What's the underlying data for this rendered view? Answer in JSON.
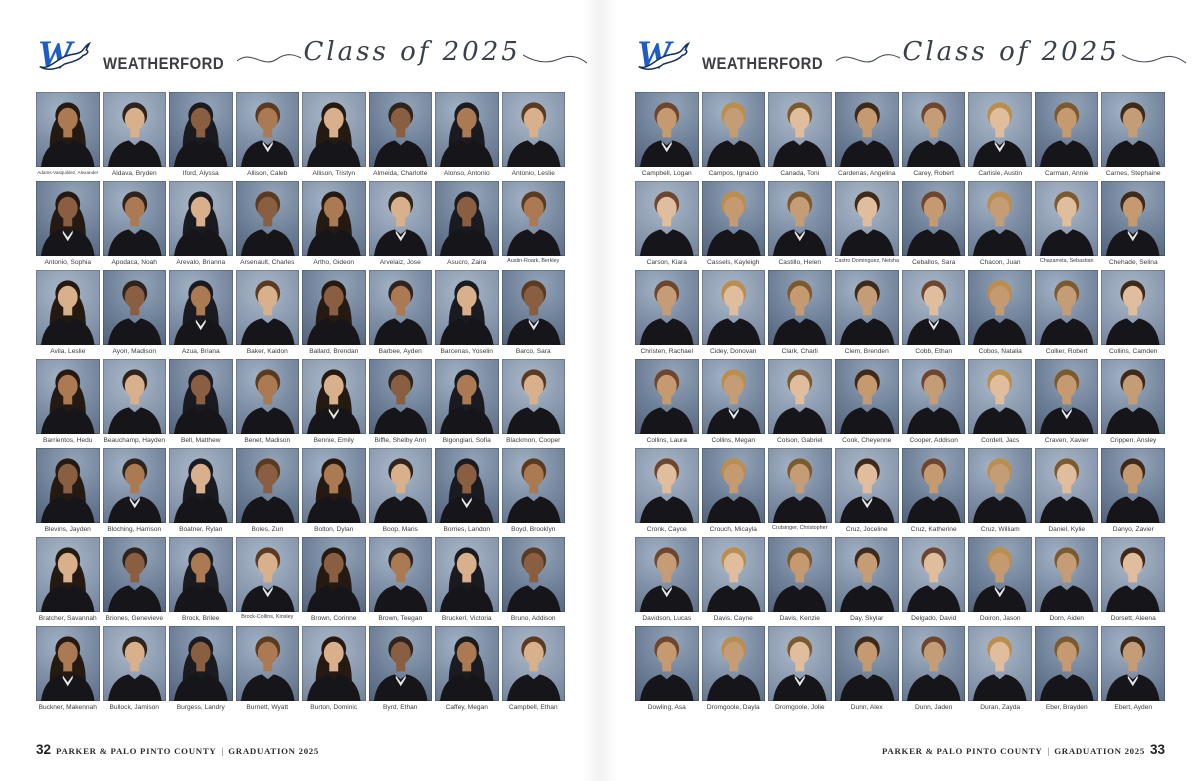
{
  "header": {
    "school_name": "WEATHERFORD",
    "class_title": "Class of 2025",
    "logo_icon": "weatherford-w-kangaroo-logo"
  },
  "colors": {
    "logo_blue": "#1d5ec6",
    "logo_navy_outline": "#16325c",
    "portrait_background_blue": "#7b8ca3"
  },
  "footer": {
    "left_page_number": "32",
    "right_page_number": "33",
    "publication": "PARKER & PALO PINTO COUNTY",
    "separator": "|",
    "section": "GRADUATION 2025"
  },
  "pages": [
    {
      "side": "left",
      "page_number": "32",
      "students": [
        "Adams-Vasquildez, Alexander",
        "Aldava, Bryden",
        "Iford, Alyssa",
        "Allison, Caleb",
        "Allison, Tristyn",
        "Almeida, Charlotte",
        "Alonso, Antonio",
        "Antonio, Leslie",
        "Antonio, Sophia",
        "Apodaca, Noah",
        "Arevalo, Brianna",
        "Arsenault, Charles",
        "Artho, Gideon",
        "Arvelaiz, Jose",
        "Asucro, Zaira",
        "Austin-Roark, Berkley",
        "Avila, Leslie",
        "Ayon, Madison",
        "Azua, Briana",
        "Baker, Kaidon",
        "Ballard, Brendan",
        "Barbee, Ayden",
        "Barcenas, Yoselin",
        "Barco, Sara",
        "Barrientos, Hedu",
        "Beauchamp, Hayden",
        "Bell, Matthew",
        "Benet, Madison",
        "Bennie, Emily",
        "Biffle, Shelby Ann",
        "Bigongiari, Sofia",
        "Blackmon, Cooper",
        "Blevins, Jayden",
        "Bloching, Harrison",
        "Boatner, Rylan",
        "Boles, Zuri",
        "Bolton, Dylan",
        "Boop, Maris",
        "Borries, Landon",
        "Boyd, Brooklyn",
        "Bratcher, Savannah",
        "Briones, Genevieve",
        "Brock, Brilee",
        "Brock-Collins, Kinsley",
        "Brown, Corinne",
        "Brown, Teegan",
        "Bruckerl, Victoria",
        "Bruno, Addison",
        "Buckner, Makennah",
        "Bullock, Jamison",
        "Burgess, Landry",
        "Burnett, Wyatt",
        "Burton, Dominic",
        "Byrd, Ethan",
        "Caffey, Megan",
        "Campbell, Ethan"
      ]
    },
    {
      "side": "right",
      "page_number": "33",
      "students": [
        "Campbell, Logan",
        "Campos, Ignacio",
        "Canada, Toni",
        "Cardenas, Angelina",
        "Carey, Robert",
        "Carlisle, Austin",
        "Carman, Annie",
        "Carnes, Stephaine",
        "Carson, Kiara",
        "Cassels, Kayleigh",
        "Castillo, Helen",
        "Castro Dominguez, Neisha",
        "Ceballos, Sara",
        "Chacon, Juan",
        "Chazarreta, Sebastian",
        "Chehade, Selina",
        "Christen, Rachael",
        "Cidey, Donovan",
        "Clark, Charli",
        "Clem, Brenden",
        "Cobb, Ethan",
        "Cobos, Natalia",
        "Collier, Robert",
        "Collins, Camden",
        "Collins, Laura",
        "Collins, Megan",
        "Colson, Gabriel",
        "Cook, Cheyenne",
        "Cooper, Addison",
        "Cordell, Jacs",
        "Craven, Xavier",
        "Crippen, Ansley",
        "Cronk, Cayce",
        "Crouch, Micayla",
        "Crutsinger, Christopher",
        "Cruz, Joceline",
        "Cruz, Katherine",
        "Cruz, William",
        "Daniel, Kylie",
        "Danyo, Zavier",
        "Davidson, Lucas",
        "Davis, Cayne",
        "Davis, Kenzie",
        "Day, Skylar",
        "Delgado, David",
        "Doiron, Jason",
        "Dorn, Aiden",
        "Dorsett, Aleena",
        "Dowling, Asa",
        "Dromgoole, Dayla",
        "Dromgoole, Jolie",
        "Dunn, Alex",
        "Dunn, Jaden",
        "Duran, Zayda",
        "Eber, Brayden",
        "Ebert, Ayden"
      ]
    }
  ]
}
